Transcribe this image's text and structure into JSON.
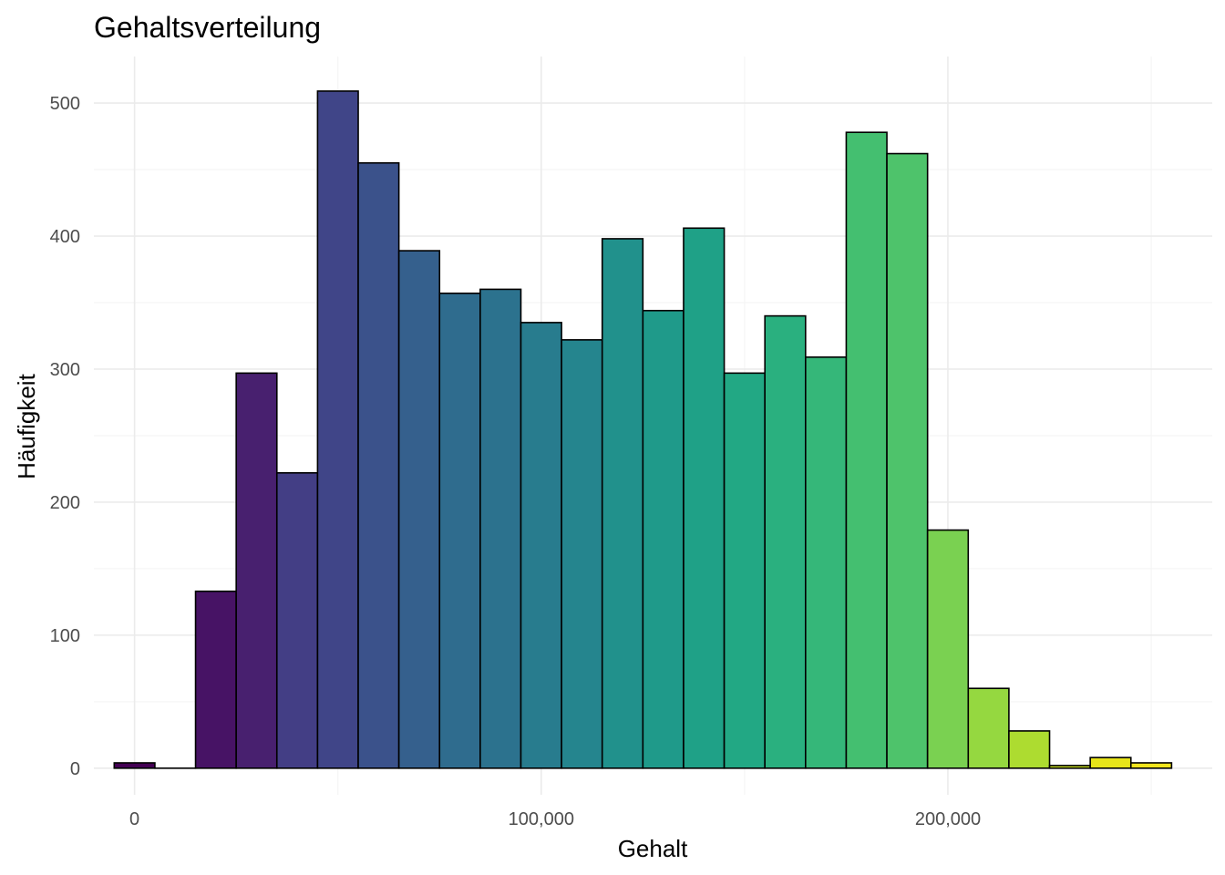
{
  "chart_data": {
    "type": "bar",
    "title": "Gehaltsverteilung",
    "xlabel": "Gehalt",
    "ylabel": "Häufigkeit",
    "bin_width": 10000,
    "bin_centers": [
      0,
      10000,
      20000,
      30000,
      40000,
      50000,
      60000,
      70000,
      80000,
      90000,
      100000,
      110000,
      120000,
      130000,
      140000,
      150000,
      160000,
      170000,
      180000,
      190000,
      200000,
      210000,
      220000,
      230000,
      240000,
      250000
    ],
    "values": [
      4,
      0,
      133,
      297,
      222,
      509,
      455,
      389,
      357,
      360,
      335,
      322,
      398,
      344,
      406,
      297,
      340,
      309,
      478,
      462,
      179,
      60,
      28,
      2,
      8,
      4
    ],
    "colors": [
      "#440154",
      "#46085c",
      "#471365",
      "#48206f",
      "#433e85",
      "#404588",
      "#3b528b",
      "#35608d",
      "#2f6c8e",
      "#2c728e",
      "#287c8e",
      "#25858e",
      "#21918c",
      "#1f9a8a",
      "#1fa187",
      "#22a884",
      "#2ab07f",
      "#35b779",
      "#44bf70",
      "#4ec36b",
      "#7ad151",
      "#95d840",
      "#addc30",
      "#c8e020",
      "#e7e419",
      "#f1e51d"
    ],
    "xlim": [
      -10000,
      265000
    ],
    "ylim": [
      -20,
      535
    ],
    "x_ticks": [
      0,
      100000,
      200000
    ],
    "x_tick_labels": [
      "0",
      "100,000",
      "200,000"
    ],
    "y_ticks": [
      0,
      100,
      200,
      300,
      400,
      500
    ],
    "y_tick_labels": [
      "0",
      "100",
      "200",
      "300",
      "400",
      "500"
    ],
    "grid": true,
    "legend": "none"
  }
}
